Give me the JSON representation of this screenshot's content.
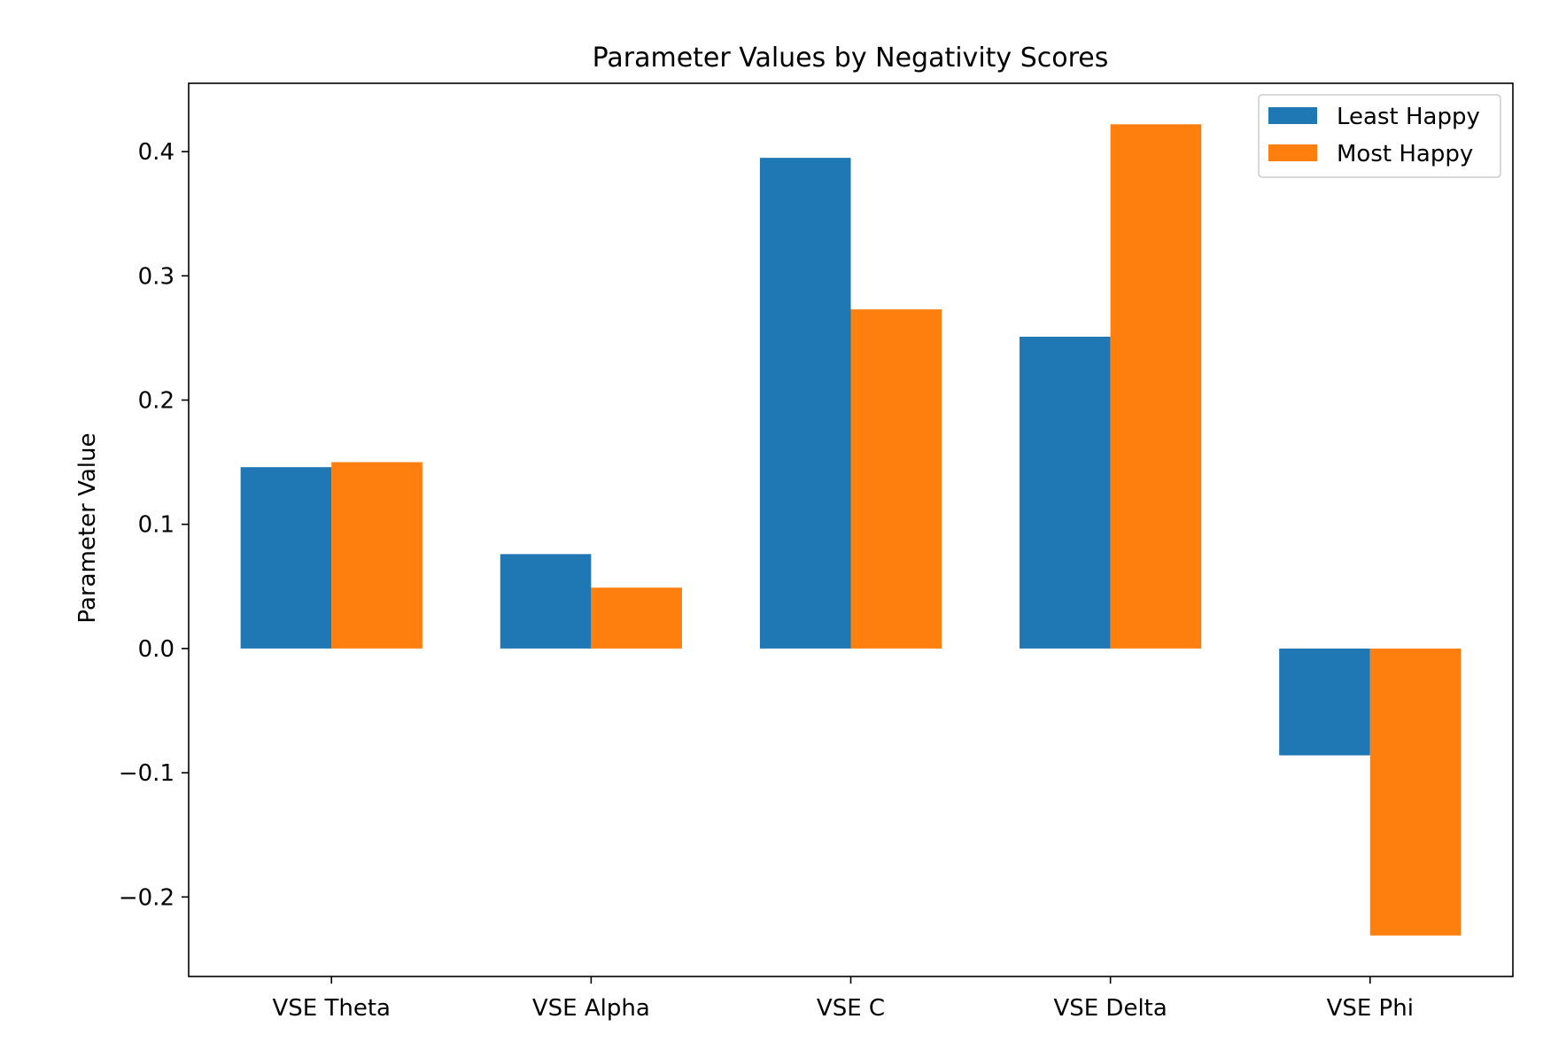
{
  "chart_data": {
    "type": "bar",
    "title": "Parameter Values by Negativity Scores",
    "xlabel": "",
    "ylabel": "Parameter Value",
    "categories": [
      "VSE Theta",
      "VSE Alpha",
      "VSE C",
      "VSE Delta",
      "VSE Phi"
    ],
    "series": [
      {
        "name": "Least Happy",
        "color": "#1f77b4",
        "values": [
          0.146,
          0.076,
          0.395,
          0.251,
          -0.086
        ]
      },
      {
        "name": "Most Happy",
        "color": "#ff7f0e",
        "values": [
          0.15,
          0.049,
          0.273,
          0.422,
          -0.231
        ]
      }
    ],
    "ylim": [
      -0.264,
      0.455
    ],
    "yticks": [
      -0.2,
      -0.1,
      0.0,
      0.1,
      0.2,
      0.3,
      0.4
    ],
    "ytick_labels": [
      "−0.2",
      "−0.1",
      "0.0",
      "0.1",
      "0.2",
      "0.3",
      "0.4"
    ],
    "grid": false,
    "legend_position": "top-right"
  }
}
